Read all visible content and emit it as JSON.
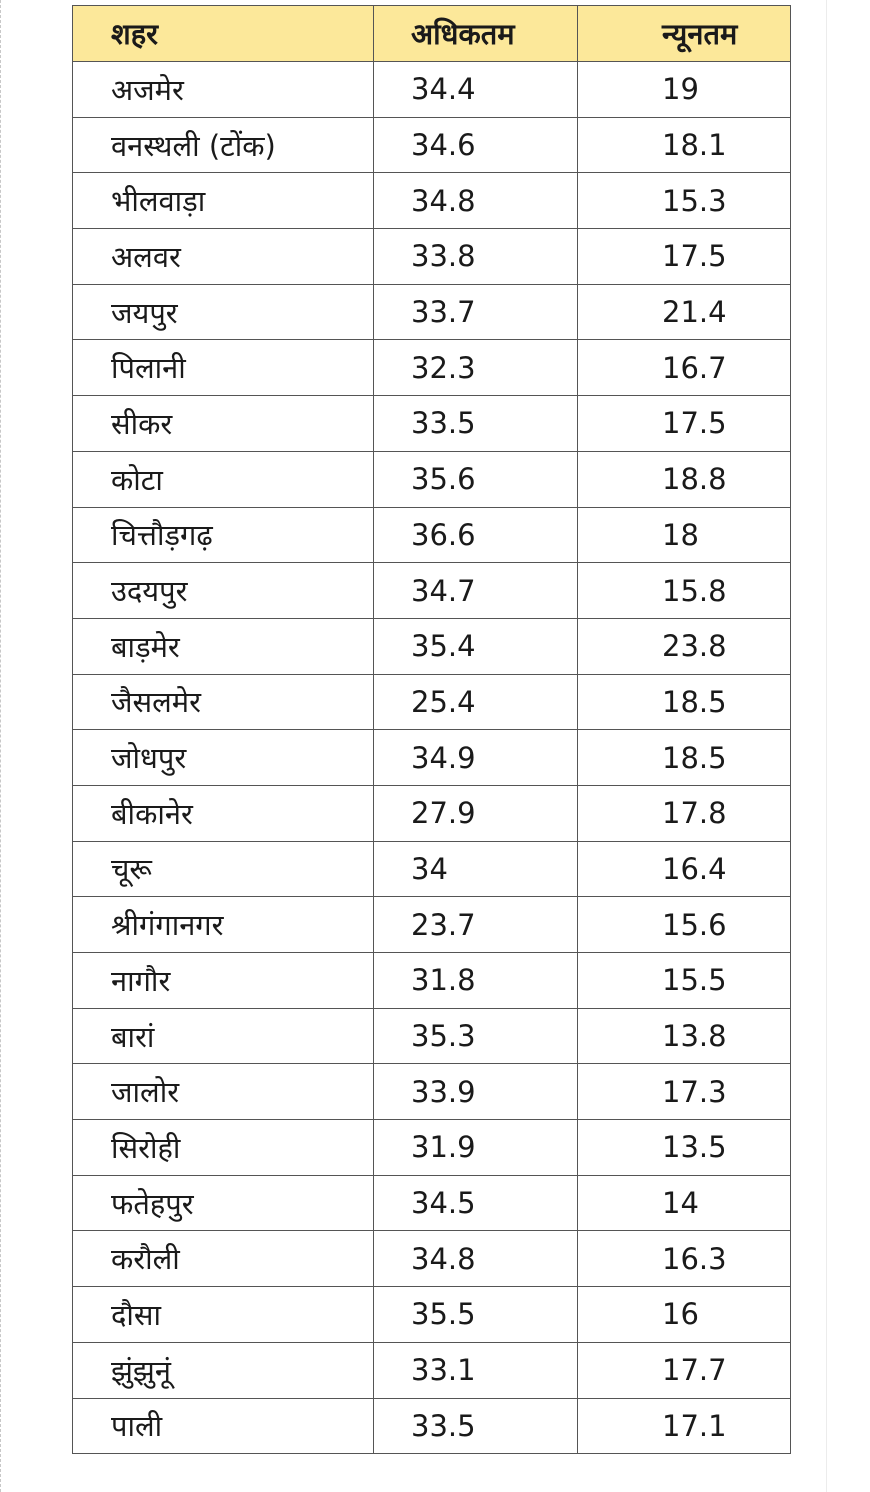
{
  "table": {
    "headers": [
      "शहर",
      "अधिकतम",
      "न्यूनतम"
    ],
    "rows": [
      [
        "अजमेर",
        "34.4",
        "19"
      ],
      [
        "वनस्थली (टोंक)",
        "34.6",
        "18.1"
      ],
      [
        "भीलवाड़ा",
        "34.8",
        "15.3"
      ],
      [
        "अलवर",
        "33.8",
        "17.5"
      ],
      [
        "जयपुर",
        "33.7",
        "21.4"
      ],
      [
        "पिलानी",
        "32.3",
        "16.7"
      ],
      [
        "सीकर",
        "33.5",
        "17.5"
      ],
      [
        "कोटा",
        "35.6",
        "18.8"
      ],
      [
        "चित्तौड़गढ़",
        "36.6",
        "18"
      ],
      [
        "उदयपुर",
        "34.7",
        "15.8"
      ],
      [
        "बाड़मेर",
        "35.4",
        "23.8"
      ],
      [
        "जैसलमेर",
        "25.4",
        "18.5"
      ],
      [
        "जोधपुर",
        "34.9",
        "18.5"
      ],
      [
        "बीकानेर",
        "27.9",
        "17.8"
      ],
      [
        "चूरू",
        "34",
        "16.4"
      ],
      [
        "श्रीगंगानगर",
        "23.7",
        "15.6"
      ],
      [
        "नागौर",
        "31.8",
        "15.5"
      ],
      [
        "बारां",
        "35.3",
        "13.8"
      ],
      [
        "जालोर",
        "33.9",
        "17.3"
      ],
      [
        "सिरोही",
        "31.9",
        "13.5"
      ],
      [
        "फतेहपुर",
        "34.5",
        "14"
      ],
      [
        "करौली",
        "34.8",
        "16.3"
      ],
      [
        "दौसा",
        "35.5",
        "16"
      ],
      [
        "झुंझुनूं",
        "33.1",
        "17.7"
      ],
      [
        "पाली",
        "33.5",
        "17.1"
      ]
    ]
  },
  "colors": {
    "header_background": "#fce89a",
    "border": "#555555",
    "text": "#1a1a1a"
  }
}
